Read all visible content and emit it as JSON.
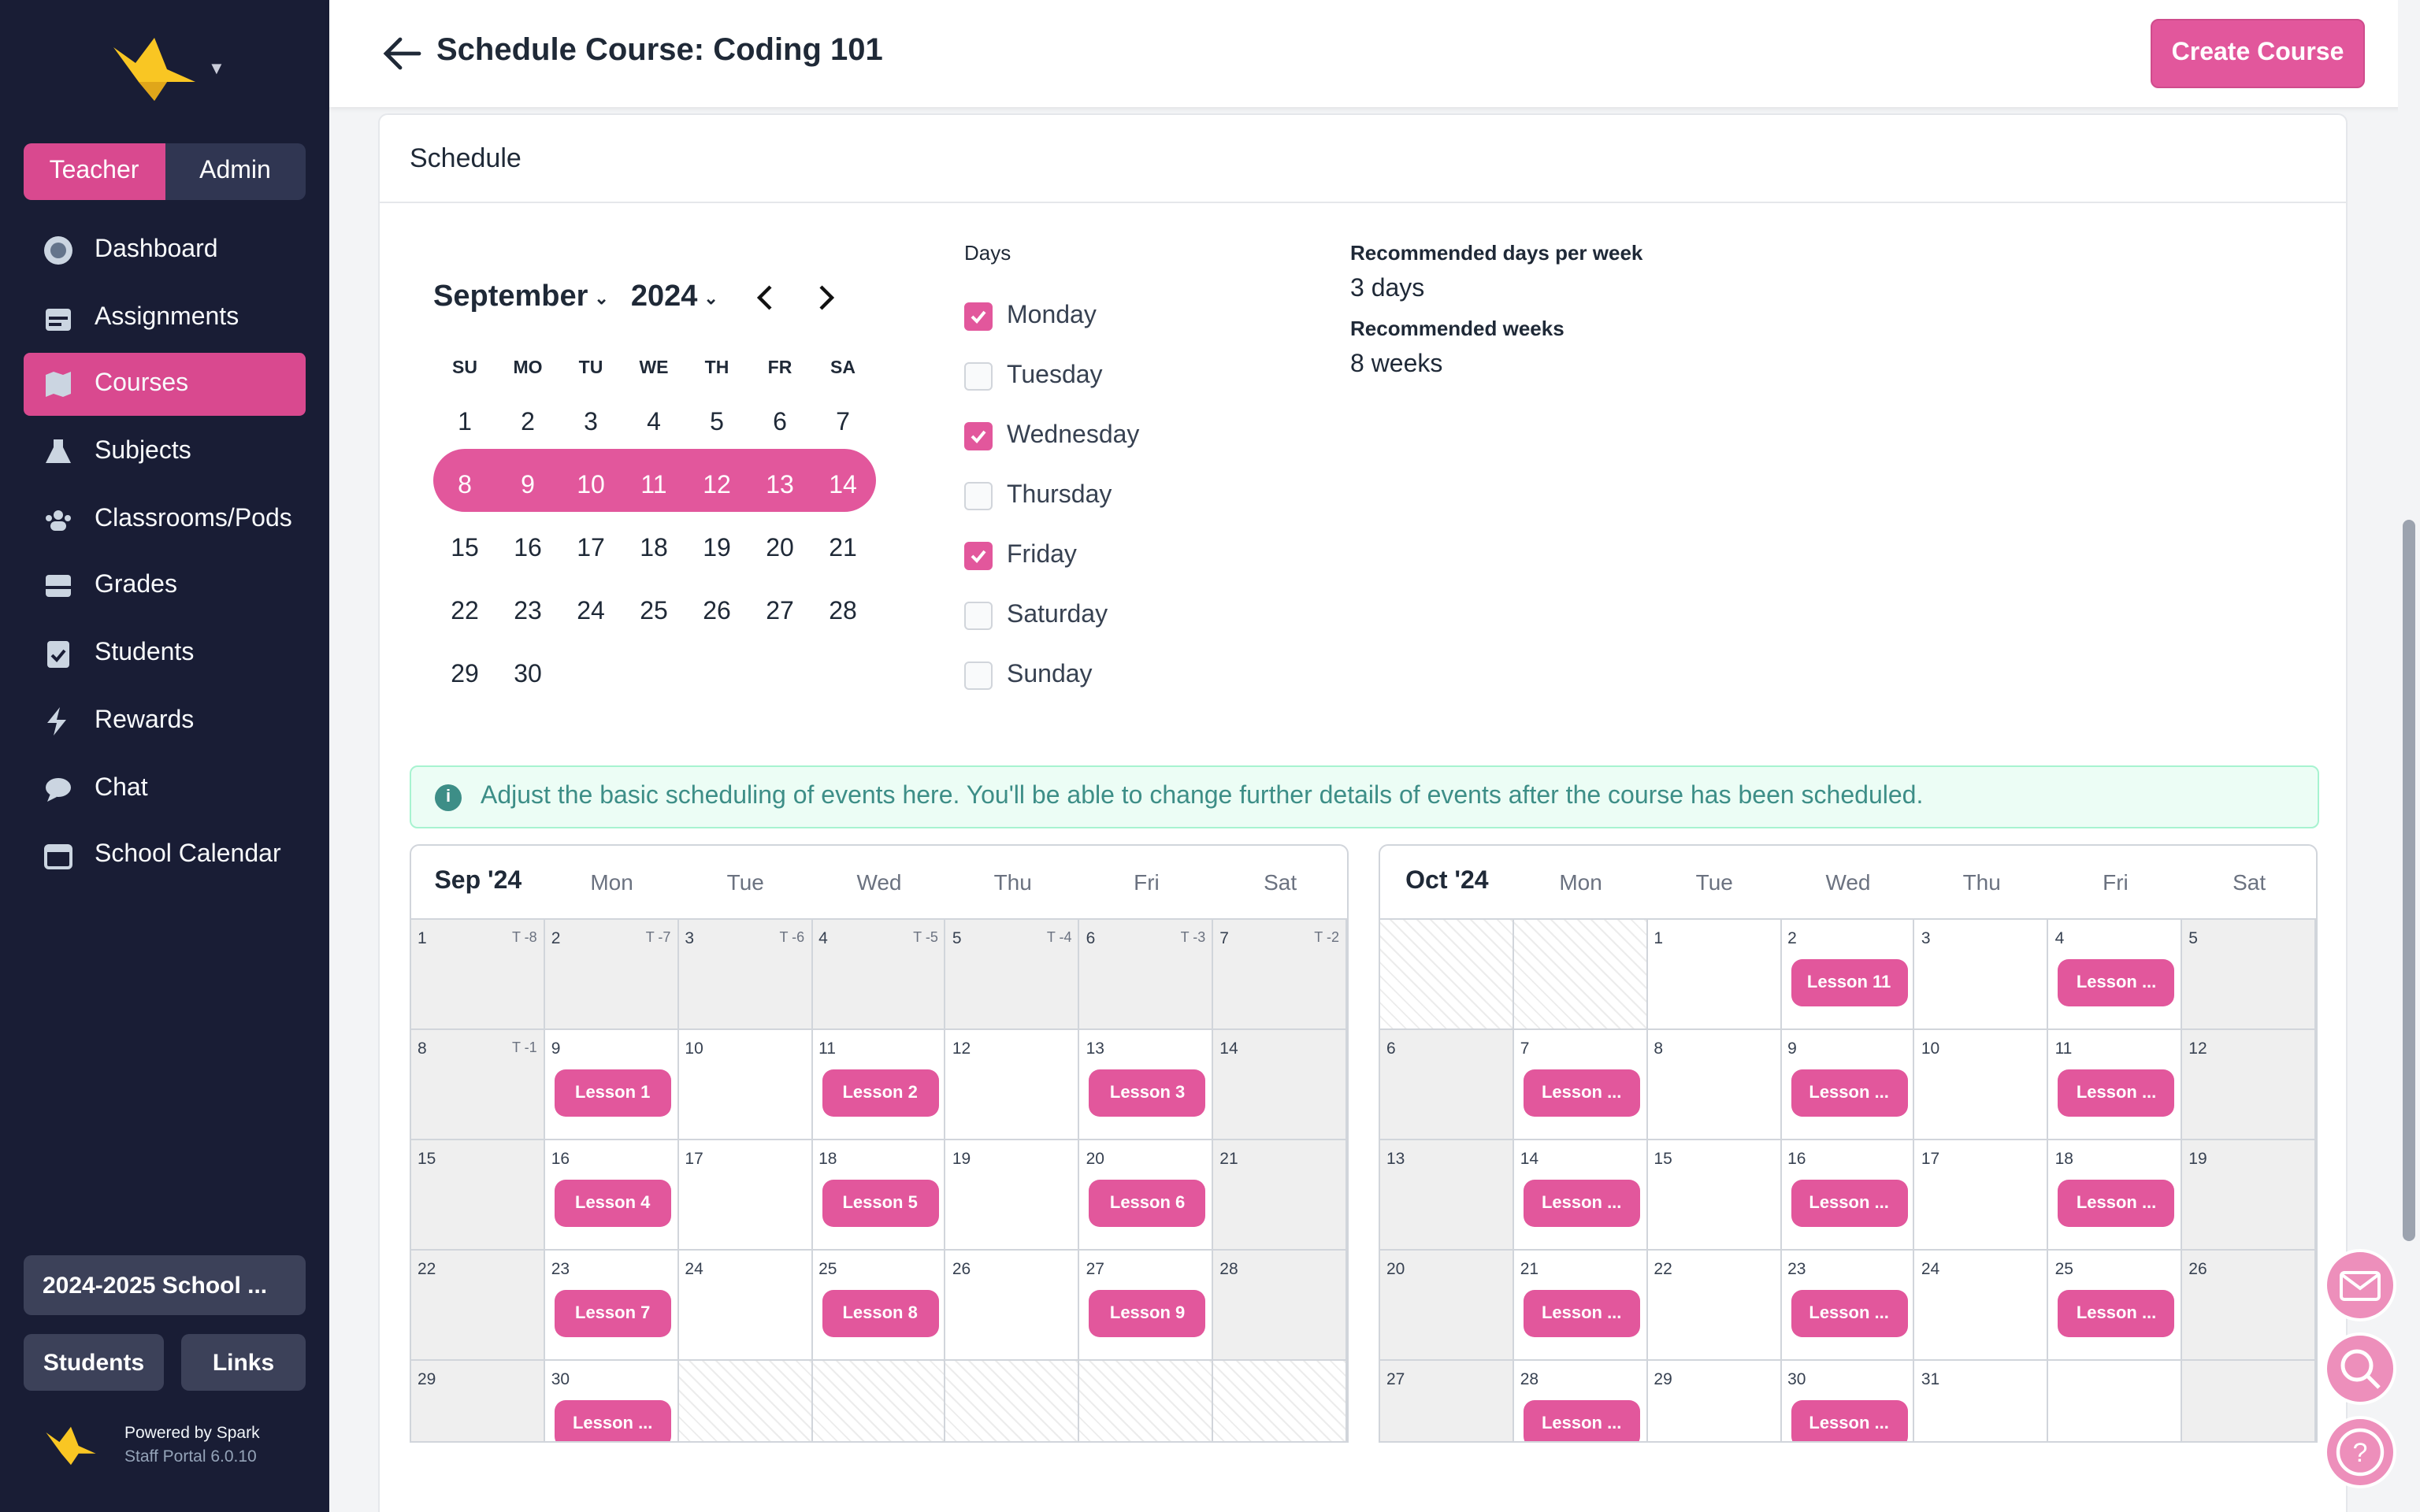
{
  "sidebar": {
    "role_tabs": [
      "Teacher",
      "Admin"
    ],
    "nav": [
      {
        "label": "Dashboard",
        "icon": "dashboard-icon"
      },
      {
        "label": "Assignments",
        "icon": "calendar-list-icon"
      },
      {
        "label": "Courses",
        "icon": "map-icon",
        "active": true
      },
      {
        "label": "Subjects",
        "icon": "flask-icon"
      },
      {
        "label": "Classrooms/Pods",
        "icon": "users-icon"
      },
      {
        "label": "Grades",
        "icon": "inbox-icon"
      },
      {
        "label": "Students",
        "icon": "clipboard-check-icon"
      },
      {
        "label": "Rewards",
        "icon": "lightning-icon"
      },
      {
        "label": "Chat",
        "icon": "chat-icon"
      },
      {
        "label": "School Calendar",
        "icon": "calendar-icon"
      }
    ],
    "school_year": "2024-2025 School ...",
    "students_btn": "Students",
    "links_btn": "Links",
    "powered": "Powered by Spark",
    "version": "Staff Portal 6.0.10"
  },
  "header": {
    "title": "Schedule Course: Coding 101",
    "create_btn": "Create Course"
  },
  "schedule": {
    "card_title": "Schedule",
    "month": "September",
    "year": "2024",
    "dow": [
      "SU",
      "MO",
      "TU",
      "WE",
      "TH",
      "FR",
      "SA"
    ],
    "weeks": [
      [
        "1",
        "2",
        "3",
        "4",
        "5",
        "6",
        "7"
      ],
      [
        "8",
        "9",
        "10",
        "11",
        "12",
        "13",
        "14"
      ],
      [
        "15",
        "16",
        "17",
        "18",
        "19",
        "20",
        "21"
      ],
      [
        "22",
        "23",
        "24",
        "25",
        "26",
        "27",
        "28"
      ],
      [
        "29",
        "30"
      ]
    ],
    "selected_week": 1,
    "days_label": "Days",
    "days": [
      {
        "label": "Monday",
        "checked": true
      },
      {
        "label": "Tuesday",
        "checked": false
      },
      {
        "label": "Wednesday",
        "checked": true
      },
      {
        "label": "Thursday",
        "checked": false
      },
      {
        "label": "Friday",
        "checked": true
      },
      {
        "label": "Saturday",
        "checked": false
      },
      {
        "label": "Sunday",
        "checked": false
      }
    ],
    "rec_days_label": "Recommended days per week",
    "rec_days": "3 days",
    "rec_weeks_label": "Recommended weeks",
    "rec_weeks": "8 weeks",
    "info": "Adjust the basic scheduling of events here. You'll be able to change further details of events after the course has been scheduled.",
    "prev": "←",
    "next": "→"
  },
  "calendars": [
    {
      "month": "Sep '24",
      "days": [
        "Mon",
        "Tue",
        "Wed",
        "Thu",
        "Fri",
        "Sat"
      ],
      "cells": [
        {
          "d": "1",
          "t": "T -8",
          "g": 1
        },
        {
          "d": "2",
          "t": "T -7",
          "g": 1
        },
        {
          "d": "3",
          "t": "T -6",
          "g": 1
        },
        {
          "d": "4",
          "t": "T -5",
          "g": 1
        },
        {
          "d": "5",
          "t": "T -4",
          "g": 1
        },
        {
          "d": "6",
          "t": "T -3",
          "g": 1
        },
        {
          "d": "7",
          "t": "T -2",
          "g": 1
        },
        {
          "d": "8",
          "t": "T -1",
          "g": 1
        },
        {
          "d": "9",
          "l": "Lesson 1"
        },
        {
          "d": "10"
        },
        {
          "d": "11",
          "l": "Lesson 2"
        },
        {
          "d": "12"
        },
        {
          "d": "13",
          "l": "Lesson 3"
        },
        {
          "d": "14",
          "g": 1
        },
        {
          "d": "15",
          "g": 1
        },
        {
          "d": "16",
          "l": "Lesson 4"
        },
        {
          "d": "17"
        },
        {
          "d": "18",
          "l": "Lesson 5"
        },
        {
          "d": "19"
        },
        {
          "d": "20",
          "l": "Lesson 6"
        },
        {
          "d": "21",
          "g": 1
        },
        {
          "d": "22",
          "g": 1
        },
        {
          "d": "23",
          "l": "Lesson 7"
        },
        {
          "d": "24"
        },
        {
          "d": "25",
          "l": "Lesson 8"
        },
        {
          "d": "26"
        },
        {
          "d": "27",
          "l": "Lesson 9"
        },
        {
          "d": "28",
          "g": 1
        },
        {
          "d": "29",
          "g": 1
        },
        {
          "d": "30",
          "l": "Lesson ..."
        },
        {
          "h": 1
        },
        {
          "h": 1
        },
        {
          "h": 1
        },
        {
          "h": 1
        },
        {
          "h": 1
        }
      ]
    },
    {
      "month": "Oct '24",
      "days": [
        "Mon",
        "Tue",
        "Wed",
        "Thu",
        "Fri",
        "Sat"
      ],
      "cells": [
        {
          "h": 1
        },
        {
          "h": 1
        },
        {
          "d": "1"
        },
        {
          "d": "2",
          "l": "Lesson 11"
        },
        {
          "d": "3"
        },
        {
          "d": "4",
          "l": "Lesson ..."
        },
        {
          "d": "5",
          "g": 1
        },
        {
          "d": "6",
          "g": 1
        },
        {
          "d": "7",
          "l": "Lesson ..."
        },
        {
          "d": "8"
        },
        {
          "d": "9",
          "l": "Lesson ..."
        },
        {
          "d": "10"
        },
        {
          "d": "11",
          "l": "Lesson ..."
        },
        {
          "d": "12",
          "g": 1
        },
        {
          "d": "13",
          "g": 1
        },
        {
          "d": "14",
          "l": "Lesson ..."
        },
        {
          "d": "15"
        },
        {
          "d": "16",
          "l": "Lesson ..."
        },
        {
          "d": "17"
        },
        {
          "d": "18",
          "l": "Lesson ..."
        },
        {
          "d": "19",
          "g": 1
        },
        {
          "d": "20",
          "g": 1
        },
        {
          "d": "21",
          "l": "Lesson ..."
        },
        {
          "d": "22"
        },
        {
          "d": "23",
          "l": "Lesson ..."
        },
        {
          "d": "24"
        },
        {
          "d": "25",
          "l": "Lesson ..."
        },
        {
          "d": "26",
          "g": 1
        },
        {
          "d": "27",
          "g": 1
        },
        {
          "d": "28",
          "l": "Lesson ..."
        },
        {
          "d": "29"
        },
        {
          "d": "30",
          "l": "Lesson ..."
        },
        {
          "d": "31"
        },
        {},
        {
          "g": 1
        }
      ]
    }
  ],
  "fab": [
    "mail-icon",
    "search-icon",
    "help-icon"
  ],
  "colors": {
    "accent": "#e2579c",
    "sidebar": "#191d35"
  }
}
